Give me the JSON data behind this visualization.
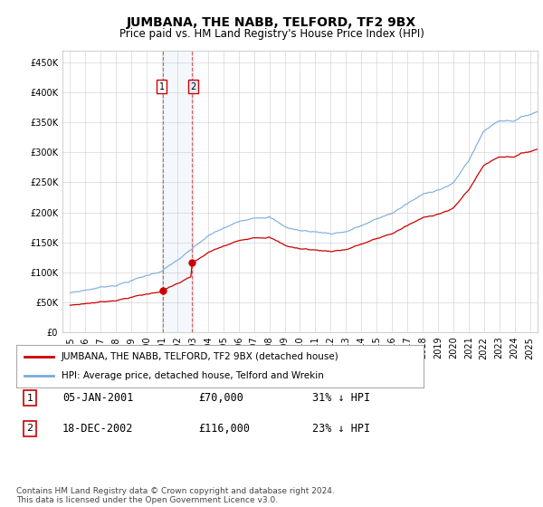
{
  "title": "JUMBANA, THE NABB, TELFORD, TF2 9BX",
  "subtitle": "Price paid vs. HM Land Registry's House Price Index (HPI)",
  "hpi_color": "#7aaadd",
  "sale_color": "#cc0000",
  "marker1_price": 70000,
  "marker2_price": 116000,
  "marker1_text": "05-JAN-2001",
  "marker2_text": "18-DEC-2002",
  "marker1_pct": "31% ↓ HPI",
  "marker2_pct": "23% ↓ HPI",
  "legend_label_red": "JUMBANA, THE NABB, TELFORD, TF2 9BX (detached house)",
  "legend_label_blue": "HPI: Average price, detached house, Telford and Wrekin",
  "footer": "Contains HM Land Registry data © Crown copyright and database right 2024.\nThis data is licensed under the Open Government Licence v3.0.",
  "ylim": [
    0,
    470000
  ],
  "yticks": [
    0,
    50000,
    100000,
    150000,
    200000,
    250000,
    300000,
    350000,
    400000,
    450000
  ],
  "background": "#ffffff",
  "grid_color": "#cccccc",
  "sale1_yr": 2001.04,
  "sale2_yr": 2002.96,
  "xmin": 1995.0,
  "xmax": 2025.5
}
